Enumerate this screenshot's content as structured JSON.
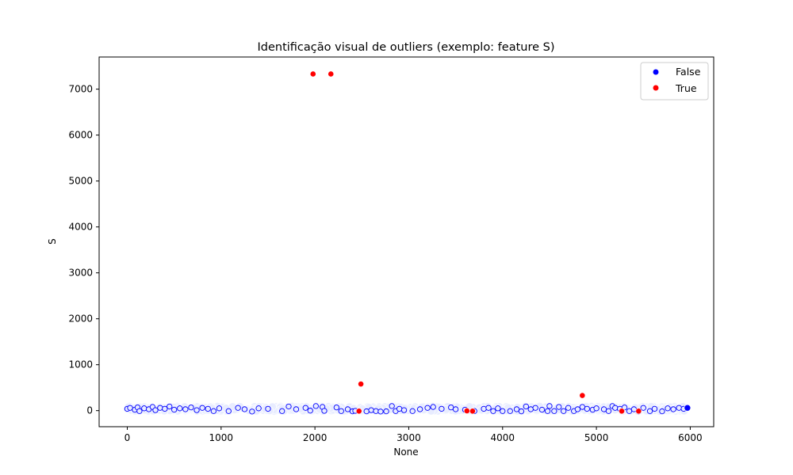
{
  "chart_data": {
    "type": "scatter",
    "title": "Identificação visual de outliers (exemplo: feature S)",
    "xlabel": "None",
    "ylabel": "S",
    "xlim": [
      -300,
      6250
    ],
    "ylim": [
      -350,
      7700
    ],
    "xticks": [
      0,
      1000,
      2000,
      3000,
      4000,
      5000,
      6000
    ],
    "yticks": [
      0,
      1000,
      2000,
      3000,
      4000,
      5000,
      6000,
      7000
    ],
    "grid": false,
    "legend": {
      "placement": "top-right",
      "entries": [
        {
          "label": "False",
          "color": "#0000ff"
        },
        {
          "label": "True",
          "color": "#ff0000"
        }
      ]
    },
    "series": [
      {
        "name": "False",
        "color": "#0000ff",
        "x_range": [
          0,
          5970
        ],
        "y_range": [
          -20,
          110
        ],
        "points": [
          [
            0,
            40
          ],
          [
            30,
            60
          ],
          [
            80,
            20
          ],
          [
            110,
            70
          ],
          [
            130,
            -10
          ],
          [
            180,
            50
          ],
          [
            230,
            30
          ],
          [
            270,
            80
          ],
          [
            300,
            10
          ],
          [
            350,
            60
          ],
          [
            400,
            40
          ],
          [
            450,
            90
          ],
          [
            500,
            20
          ],
          [
            560,
            50
          ],
          [
            620,
            30
          ],
          [
            680,
            70
          ],
          [
            740,
            10
          ],
          [
            800,
            60
          ],
          [
            860,
            40
          ],
          [
            920,
            -10
          ],
          [
            980,
            50
          ],
          [
            1080,
            -10
          ],
          [
            1180,
            60
          ],
          [
            1250,
            30
          ],
          [
            1330,
            -20
          ],
          [
            1400,
            50
          ],
          [
            1500,
            40
          ],
          [
            1650,
            -10
          ],
          [
            1720,
            90
          ],
          [
            1800,
            30
          ],
          [
            1900,
            60
          ],
          [
            1950,
            0
          ],
          [
            2010,
            100
          ],
          [
            2080,
            80
          ],
          [
            2100,
            -5
          ],
          [
            2230,
            70
          ],
          [
            2280,
            -10
          ],
          [
            2350,
            30
          ],
          [
            2400,
            -15
          ],
          [
            2430,
            -5
          ],
          [
            2550,
            -15
          ],
          [
            2600,
            10
          ],
          [
            2650,
            -10
          ],
          [
            2700,
            -20
          ],
          [
            2760,
            -15
          ],
          [
            2820,
            100
          ],
          [
            2860,
            -10
          ],
          [
            2900,
            40
          ],
          [
            2950,
            10
          ],
          [
            3040,
            -10
          ],
          [
            3120,
            30
          ],
          [
            3200,
            60
          ],
          [
            3260,
            80
          ],
          [
            3350,
            40
          ],
          [
            3450,
            70
          ],
          [
            3500,
            30
          ],
          [
            3600,
            20
          ],
          [
            3700,
            -10
          ],
          [
            3800,
            40
          ],
          [
            3850,
            60
          ],
          [
            3900,
            -10
          ],
          [
            3950,
            50
          ],
          [
            4000,
            -10
          ],
          [
            4080,
            -10
          ],
          [
            4150,
            30
          ],
          [
            4200,
            -15
          ],
          [
            4250,
            90
          ],
          [
            4300,
            30
          ],
          [
            4350,
            60
          ],
          [
            4420,
            20
          ],
          [
            4480,
            -10
          ],
          [
            4500,
            100
          ],
          [
            4550,
            -10
          ],
          [
            4600,
            80
          ],
          [
            4650,
            -10
          ],
          [
            4700,
            60
          ],
          [
            4760,
            -10
          ],
          [
            4800,
            30
          ],
          [
            4850,
            80
          ],
          [
            4900,
            40
          ],
          [
            4960,
            20
          ],
          [
            5000,
            50
          ],
          [
            5080,
            30
          ],
          [
            5130,
            -10
          ],
          [
            5170,
            100
          ],
          [
            5200,
            60
          ],
          [
            5250,
            40
          ],
          [
            5300,
            70
          ],
          [
            5350,
            -10
          ],
          [
            5400,
            30
          ],
          [
            5450,
            -15
          ],
          [
            5500,
            60
          ],
          [
            5570,
            -10
          ],
          [
            5620,
            40
          ],
          [
            5700,
            -15
          ],
          [
            5760,
            50
          ],
          [
            5820,
            30
          ],
          [
            5880,
            60
          ],
          [
            5930,
            40
          ],
          [
            5970,
            60
          ]
        ]
      },
      {
        "name": "True",
        "color": "#ff0000",
        "points": [
          [
            1980,
            7330
          ],
          [
            2170,
            7330
          ],
          [
            2490,
            580
          ],
          [
            4850,
            330
          ],
          [
            3680,
            -10
          ],
          [
            5270,
            -10
          ],
          [
            5450,
            -10
          ],
          [
            2470,
            -10
          ],
          [
            3620,
            -5
          ]
        ]
      }
    ]
  }
}
